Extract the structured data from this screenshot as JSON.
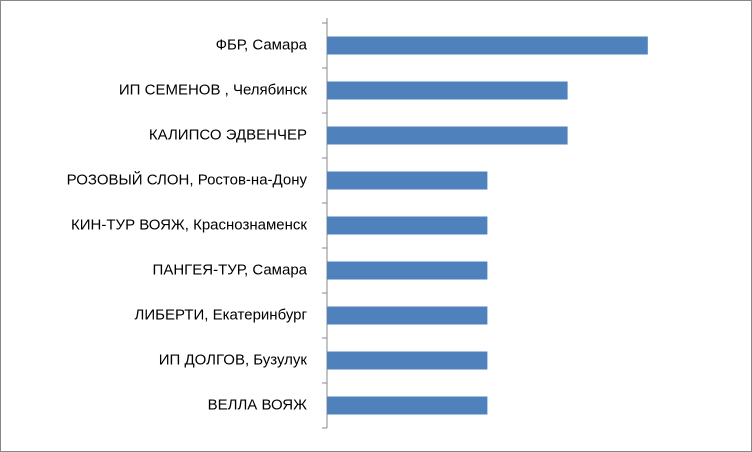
{
  "chart_data": {
    "type": "bar",
    "orientation": "horizontal",
    "categories": [
      "ФБР, Самара",
      "ИП СЕМЕНОВ , Челябинск",
      "КАЛИПСО ЭДВЕНЧЕР",
      "РОЗОВЫЙ СЛОН, Ростов-на-Дону",
      "КИН-ТУР ВОЯЖ, Краснознаменск",
      "ПАНГЕЯ-ТУР, Самара",
      "ЛИБЕРТИ, Екатеринбург",
      "ИП ДОЛГОВ, Бузулук",
      "ВЕЛЛА ВОЯЖ"
    ],
    "values": [
      4,
      3,
      3,
      2,
      2,
      2,
      2,
      2,
      2
    ],
    "color": "#4f81bd",
    "xlim": [
      0,
      5
    ]
  }
}
